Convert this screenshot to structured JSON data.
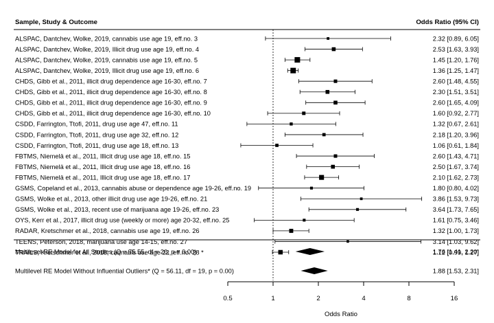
{
  "chart_data": {
    "type": "forest",
    "header_left": "Sample, Study & Outcome",
    "header_right": "Odds Ratio (95% CI)",
    "xlabel": "Odds Ratio",
    "x_scale": "log2",
    "xlim": [
      0.5,
      16
    ],
    "x_ticks": [
      "0.5",
      "1",
      "2",
      "4",
      "8",
      "16"
    ],
    "reference_line": 1,
    "studies": [
      {
        "label": "ALSPAC, Dantchev, Wolke, 2019, cannabis use age 19, eff.no. 3",
        "or": 2.32,
        "lo": 0.89,
        "hi": 6.05,
        "ci_text": "2.32 [0.89, 6.05]",
        "weight": 0.3
      },
      {
        "label": "ALSPAC, Dantchev, Wolke, 2019, Illicit drug use age 19, eff.no. 4",
        "or": 2.53,
        "lo": 1.63,
        "hi": 3.93,
        "ci_text": "2.53 [1.63, 3.93]",
        "weight": 0.6
      },
      {
        "label": "ALSPAC, Dantchev, Wolke, 2019, cannabis use age 19, eff.no. 5",
        "or": 1.45,
        "lo": 1.2,
        "hi": 1.76,
        "ci_text": "1.45 [1.20, 1.76]",
        "weight": 1.0
      },
      {
        "label": "ALSPAC, Dantchev, Wolke, 2019, Illicit drug use age 19, eff.no. 6",
        "or": 1.36,
        "lo": 1.25,
        "hi": 1.47,
        "ci_text": "1.36 [1.25, 1.47]",
        "weight": 1.0
      },
      {
        "label": "CHDS, Gibb et al., 2011, illicit drug dependence age 16-30, eff.no. 7",
        "or": 2.6,
        "lo": 1.48,
        "hi": 4.55,
        "ci_text": "2.60 [1.48, 4.55]",
        "weight": 0.5
      },
      {
        "label": "CHDS, Gibb et al., 2011, illicit drug dependence age 16-30, eff.no. 8",
        "or": 2.3,
        "lo": 1.51,
        "hi": 3.51,
        "ci_text": "2.30 [1.51, 3.51]",
        "weight": 0.6
      },
      {
        "label": "CHDS, Gibb et al., 2011, illicit drug dependence age 16-30, eff.no. 9",
        "or": 2.6,
        "lo": 1.65,
        "hi": 4.09,
        "ci_text": "2.60 [1.65, 4.09]",
        "weight": 0.6
      },
      {
        "label": "CHDS, Gibb et al., 2011, illicit drug dependence age 16-30, eff.no. 10",
        "or": 1.6,
        "lo": 0.92,
        "hi": 2.77,
        "ci_text": "1.60 [0.92, 2.77]",
        "weight": 0.5
      },
      {
        "label": "CSDD, Farrington, Ttofi, 2011, drug use age 47, eff.no. 11",
        "or": 1.32,
        "lo": 0.67,
        "hi": 2.61,
        "ci_text": "1.32 [0.67, 2.61]",
        "weight": 0.4
      },
      {
        "label": "CSDD, Farrington, Ttofi, 2011, drug use age 32, eff.no. 12",
        "or": 2.18,
        "lo": 1.2,
        "hi": 3.96,
        "ci_text": "2.18 [1.20, 3.96]",
        "weight": 0.45
      },
      {
        "label": "CSDD, Farrington, Ttofi, 2011, drug use age 18, eff.no. 13",
        "or": 1.06,
        "lo": 0.61,
        "hi": 1.84,
        "ci_text": "1.06 [0.61, 1.84]",
        "weight": 0.45
      },
      {
        "label": "FBTMS, Niemelä et al., 2011, Illicit drug use age 18, eff.no. 15",
        "or": 2.6,
        "lo": 1.43,
        "hi": 4.71,
        "ci_text": "2.60 [1.43, 4.71]",
        "weight": 0.5
      },
      {
        "label": "FBTMS, Niemelä et al., 2011, Illicit drug use age 18, eff.no. 16",
        "or": 2.5,
        "lo": 1.67,
        "hi": 3.74,
        "ci_text": "2.50 [1.67, 3.74]",
        "weight": 0.6
      },
      {
        "label": "FBTMS, Niemelä et al., 2011, Illicit drug use age 18, eff.no. 17",
        "or": 2.1,
        "lo": 1.62,
        "hi": 2.73,
        "ci_text": "2.10 [1.62, 2.73]",
        "weight": 0.85
      },
      {
        "label": "GSMS, Copeland et al., 2013, cannabis abuse or dependence age 19-26, eff.no. 19",
        "or": 1.8,
        "lo": 0.8,
        "hi": 4.02,
        "ci_text": "1.80 [0.80, 4.02]",
        "weight": 0.35
      },
      {
        "label": "GSMS, Wolke et al., 2013, other illicit drug use age 19-26, eff.no. 21",
        "or": 3.86,
        "lo": 1.53,
        "hi": 9.73,
        "ci_text": "3.86 [1.53, 9.73]",
        "weight": 0.3
      },
      {
        "label": "GSMS, Wolke et al., 2013, recent use of marijuana age 19-26, eff.no. 23",
        "or": 3.64,
        "lo": 1.73,
        "hi": 7.65,
        "ci_text": "3.64 [1.73, 7.65]",
        "weight": 0.35
      },
      {
        "label": "OYS, Kerr et al., 2017, illicit drug use (weekly or more) age 20-32, eff.no. 25",
        "or": 1.61,
        "lo": 0.75,
        "hi": 3.46,
        "ci_text": "1.61 [0.75, 3.46]",
        "weight": 0.35
      },
      {
        "label": "RADAR, Kretschmer et al., 2018, cannabis use age 19, eff.no. 26",
        "or": 1.32,
        "lo": 1.0,
        "hi": 1.73,
        "ci_text": "1.32 [1.00, 1.73]",
        "weight": 0.65
      },
      {
        "label": "TEENS, Peterson, 2018, marijuana use age 14-15, eff.no. 27",
        "or": 3.14,
        "lo": 1.03,
        "hi": 9.62,
        "ci_text": "3.14 [1.03, 9.62]",
        "weight": 0.25
      },
      {
        "label": "TRAILS, Kretschmer et al., 2018, cannabis use age 22, eff.no. 28 *",
        "or": 1.12,
        "lo": 0.99,
        "hi": 1.27,
        "ci_text": "1.12 [0.99, 1.27]",
        "weight": 0.75
      }
    ],
    "summaries": [
      {
        "label": "Multilevel RE Model for All Studies (Q = 75.55, df = 20, p = 0.00)",
        "or": 1.76,
        "lo": 1.41,
        "hi": 2.2,
        "ci_text": "1.76 [1.41, 2.20]"
      },
      {
        "label": "Multilevel RE Model Without Influential Outliers* (Q = 56.11, df = 19, p = 0.00)",
        "or": 1.88,
        "lo": 1.53,
        "hi": 2.31,
        "ci_text": "1.88 [1.53, 2.31]"
      }
    ]
  }
}
